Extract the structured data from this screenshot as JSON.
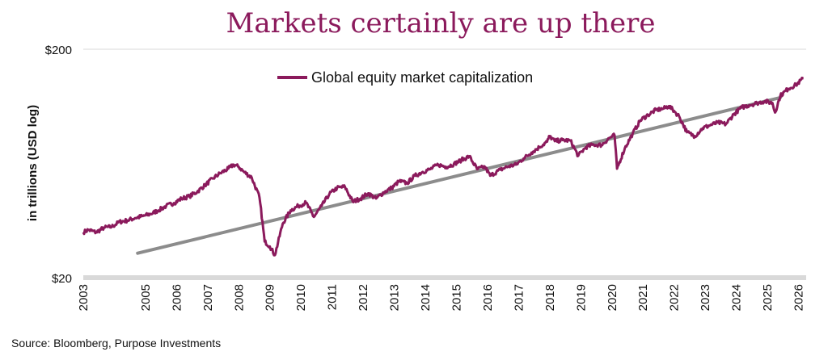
{
  "chart_data": {
    "type": "line",
    "title": "Markets certainly are up there",
    "ylabel": "in trillions (USD log)",
    "xlabel": "",
    "yscale": "log",
    "ylim": [
      20,
      200
    ],
    "xlim": [
      "2003-01-01",
      "2026-04-01"
    ],
    "ytick_labels": [
      "$200",
      "$20"
    ],
    "yticks": [
      200,
      20
    ],
    "xtick_labels": [
      "2003",
      "2005",
      "2006",
      "2007",
      "2008",
      "2009",
      "2010",
      "2011",
      "2012",
      "2013",
      "2014",
      "2015",
      "2016",
      "2017",
      "2018",
      "2019",
      "2020",
      "2021",
      "2022",
      "2023",
      "2024",
      "2025",
      "2026"
    ],
    "grid": "horizontal",
    "legend_position": "top-center",
    "source": "Source: Bloomberg, Purpose Investments",
    "colors": {
      "title": "#8B1A5C",
      "series": "#8B1A5C",
      "trend": "#8C8C8C",
      "axis": "#D9D9D9",
      "grid": "#D9D9D9"
    },
    "series": [
      {
        "name": "Global equity market capitalization",
        "color": "#8B1A5C",
        "points": [
          [
            "2003-01-01",
            31.6
          ],
          [
            "2003-03-01",
            32.4
          ],
          [
            "2003-06-01",
            31.6
          ],
          [
            "2003-09-01",
            33.1
          ],
          [
            "2003-12-01",
            33.4
          ],
          [
            "2004-03-01",
            35.1
          ],
          [
            "2004-06-01",
            35.6
          ],
          [
            "2004-09-01",
            36.5
          ],
          [
            "2004-12-01",
            37.2
          ],
          [
            "2005-03-01",
            38.0
          ],
          [
            "2005-06-01",
            39.4
          ],
          [
            "2005-09-01",
            41.2
          ],
          [
            "2005-12-01",
            42.4
          ],
          [
            "2006-03-01",
            44.4
          ],
          [
            "2006-06-01",
            45.4
          ],
          [
            "2006-09-01",
            47.6
          ],
          [
            "2006-12-01",
            50.8
          ],
          [
            "2007-03-01",
            54.3
          ],
          [
            "2007-06-01",
            57.4
          ],
          [
            "2007-09-01",
            60.0
          ],
          [
            "2007-11-01",
            62.5
          ],
          [
            "2008-01-01",
            61.1
          ],
          [
            "2008-03-01",
            58.1
          ],
          [
            "2008-06-01",
            54.9
          ],
          [
            "2008-09-01",
            44.9
          ],
          [
            "2008-11-01",
            28.8
          ],
          [
            "2009-01-01",
            27.4
          ],
          [
            "2009-03-01",
            25.1
          ],
          [
            "2009-06-01",
            34.5
          ],
          [
            "2009-09-01",
            39.4
          ],
          [
            "2009-12-01",
            41.2
          ],
          [
            "2010-03-01",
            42.6
          ],
          [
            "2010-06-01",
            36.9
          ],
          [
            "2010-09-01",
            41.2
          ],
          [
            "2010-12-01",
            46.5
          ],
          [
            "2011-03-01",
            49.4
          ],
          [
            "2011-06-01",
            50.0
          ],
          [
            "2011-09-01",
            43.0
          ],
          [
            "2011-12-01",
            44.4
          ],
          [
            "2012-03-01",
            46.8
          ],
          [
            "2012-06-01",
            44.4
          ],
          [
            "2012-09-01",
            47.3
          ],
          [
            "2012-12-01",
            49.4
          ],
          [
            "2013-03-01",
            52.9
          ],
          [
            "2013-06-01",
            51.8
          ],
          [
            "2013-09-01",
            55.9
          ],
          [
            "2013-12-01",
            58.1
          ],
          [
            "2014-03-01",
            59.7
          ],
          [
            "2014-06-01",
            62.5
          ],
          [
            "2014-09-01",
            61.1
          ],
          [
            "2014-12-01",
            62.8
          ],
          [
            "2015-03-01",
            65.5
          ],
          [
            "2015-06-01",
            68.0
          ],
          [
            "2015-09-01",
            59.7
          ],
          [
            "2015-12-01",
            61.1
          ],
          [
            "2016-02-01",
            55.9
          ],
          [
            "2016-06-01",
            59.4
          ],
          [
            "2016-09-01",
            61.4
          ],
          [
            "2016-12-01",
            62.5
          ],
          [
            "2017-03-01",
            66.5
          ],
          [
            "2017-06-01",
            70.6
          ],
          [
            "2017-09-01",
            74.5
          ],
          [
            "2017-12-01",
            78.8
          ],
          [
            "2018-01-01",
            83.3
          ],
          [
            "2018-03-01",
            79.2
          ],
          [
            "2018-06-01",
            80.0
          ],
          [
            "2018-09-01",
            79.6
          ],
          [
            "2018-12-01",
            68.3
          ],
          [
            "2019-03-01",
            74.5
          ],
          [
            "2019-06-01",
            76.5
          ],
          [
            "2019-09-01",
            76.1
          ],
          [
            "2019-12-01",
            81.7
          ],
          [
            "2020-02-01",
            84.1
          ],
          [
            "2020-03-01",
            60.0
          ],
          [
            "2020-06-01",
            73.7
          ],
          [
            "2020-09-01",
            85.4
          ],
          [
            "2020-12-01",
            97.7
          ],
          [
            "2021-03-01",
            103.2
          ],
          [
            "2021-06-01",
            108.4
          ],
          [
            "2021-09-01",
            110.0
          ],
          [
            "2021-11-01",
            112.8
          ],
          [
            "2022-01-01",
            107.3
          ],
          [
            "2022-03-01",
            101.7
          ],
          [
            "2022-06-01",
            86.6
          ],
          [
            "2022-09-01",
            83.3
          ],
          [
            "2022-12-01",
            90.2
          ],
          [
            "2023-03-01",
            93.1
          ],
          [
            "2023-06-01",
            95.5
          ],
          [
            "2023-09-01",
            94.0
          ],
          [
            "2023-12-01",
            103.7
          ],
          [
            "2024-03-01",
            111.1
          ],
          [
            "2024-06-01",
            113.9
          ],
          [
            "2024-09-01",
            116.3
          ],
          [
            "2024-12-01",
            118.5
          ],
          [
            "2025-03-01",
            116.3
          ],
          [
            "2025-04-01",
            105.7
          ],
          [
            "2025-06-01",
            125.0
          ],
          [
            "2025-09-01",
            134.3
          ],
          [
            "2025-12-01",
            139.6
          ],
          [
            "2026-03-01",
            149.2
          ]
        ]
      }
    ],
    "trendline": {
      "color": "#8C8C8C",
      "points": [
        [
          "2004-10-01",
          25.6
        ],
        [
          "2025-06-01",
          122.8
        ]
      ]
    }
  }
}
